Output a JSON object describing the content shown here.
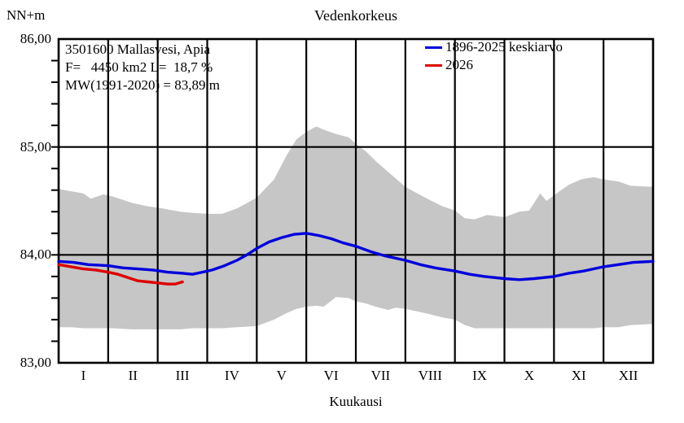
{
  "title": "Vedenkorkeus",
  "y_axis": {
    "unit_label": "NN+m",
    "min": 83,
    "max": 86,
    "major_ticks": [
      {
        "value": 86,
        "label": "86,00"
      },
      {
        "value": 85,
        "label": "85,00"
      },
      {
        "value": 84,
        "label": "84,00"
      },
      {
        "value": 83,
        "label": "83,00"
      }
    ],
    "minor_tick_step": 0.2,
    "gridline_values": [
      85,
      84
    ]
  },
  "x_axis": {
    "label": "Kuukausi",
    "months": [
      "I",
      "II",
      "III",
      "IV",
      "V",
      "VI",
      "VII",
      "VIII",
      "IX",
      "X",
      "XI",
      "XII"
    ]
  },
  "info_box": {
    "station": "3501600 Mallasvesi, Apia",
    "parameters": "F=   4450 km2 L=  18,7 %",
    "mean_water": "MW(1991-2020) = 83,89 m"
  },
  "legend": {
    "items": [
      {
        "label": "1896-2025 keskiarvo",
        "color": "#0000dd"
      },
      {
        "label": "2026",
        "color": "#dd0000"
      }
    ]
  },
  "colors": {
    "band": "#c6c6c6",
    "grid": "#000000",
    "mean_line": "#0000dd",
    "current_year_line": "#dd0000"
  },
  "chart_data": {
    "type": "line",
    "title": "Vedenkorkeus",
    "xlabel": "Kuukausi",
    "ylabel": "NN+m",
    "xlim": [
      1,
      13
    ],
    "ylim": [
      83,
      86
    ],
    "x_unit": "month position (1 = Jan 1, 13 = Dec 31)",
    "grid": "monthly vertical lines + horizontal lines at 84.00 and 85.00",
    "legend_position": "top-right-inside",
    "band": {
      "name": "min-max range 1896-2025",
      "color": "#c6c6c6",
      "points_x_lower_upper": [
        [
          1.0,
          83.33,
          84.61
        ],
        [
          1.25,
          83.33,
          84.59
        ],
        [
          1.5,
          83.32,
          84.57
        ],
        [
          1.65,
          83.32,
          84.52
        ],
        [
          1.9,
          83.32,
          84.56
        ],
        [
          2.1,
          83.32,
          84.54
        ],
        [
          2.5,
          83.31,
          84.48
        ],
        [
          2.8,
          83.31,
          84.45
        ],
        [
          3.1,
          83.31,
          84.43
        ],
        [
          3.45,
          83.31,
          84.4
        ],
        [
          3.7,
          83.32,
          84.39
        ],
        [
          4.0,
          83.32,
          84.38
        ],
        [
          4.3,
          83.32,
          84.38
        ],
        [
          4.6,
          83.33,
          84.43
        ],
        [
          5.0,
          83.34,
          84.53
        ],
        [
          5.35,
          83.4,
          84.7
        ],
        [
          5.6,
          83.46,
          84.92
        ],
        [
          5.8,
          83.5,
          85.07
        ],
        [
          6.0,
          83.52,
          85.14
        ],
        [
          6.2,
          83.53,
          85.19
        ],
        [
          6.35,
          83.52,
          85.16
        ],
        [
          6.6,
          83.61,
          85.12
        ],
        [
          6.85,
          83.6,
          85.09
        ],
        [
          7.0,
          83.57,
          85.03
        ],
        [
          7.2,
          83.55,
          84.96
        ],
        [
          7.4,
          83.52,
          84.87
        ],
        [
          7.65,
          83.49,
          84.77
        ],
        [
          7.8,
          83.51,
          84.71
        ],
        [
          8.0,
          83.5,
          84.63
        ],
        [
          8.4,
          83.46,
          84.53
        ],
        [
          8.75,
          83.42,
          84.45
        ],
        [
          9.0,
          83.4,
          84.41
        ],
        [
          9.2,
          83.35,
          84.34
        ],
        [
          9.4,
          83.32,
          84.33
        ],
        [
          9.65,
          83.32,
          84.37
        ],
        [
          10.0,
          83.32,
          84.35
        ],
        [
          10.3,
          83.32,
          84.4
        ],
        [
          10.5,
          83.32,
          84.41
        ],
        [
          10.72,
          83.32,
          84.57
        ],
        [
          10.85,
          83.32,
          84.5
        ],
        [
          11.05,
          83.32,
          84.57
        ],
        [
          11.3,
          83.32,
          84.65
        ],
        [
          11.55,
          83.32,
          84.7
        ],
        [
          11.8,
          83.32,
          84.72
        ],
        [
          12.0,
          83.33,
          84.7
        ],
        [
          12.3,
          83.33,
          84.68
        ],
        [
          12.55,
          83.35,
          84.64
        ],
        [
          13.0,
          83.36,
          84.63
        ]
      ]
    },
    "series": [
      {
        "name": "1896-2025 keskiarvo",
        "color": "#0000dd",
        "points": [
          [
            1.0,
            83.94
          ],
          [
            1.3,
            83.93
          ],
          [
            1.6,
            83.91
          ],
          [
            2.0,
            83.9
          ],
          [
            2.3,
            83.88
          ],
          [
            2.6,
            83.87
          ],
          [
            2.9,
            83.86
          ],
          [
            3.2,
            83.84
          ],
          [
            3.5,
            83.83
          ],
          [
            3.7,
            83.82
          ],
          [
            3.9,
            83.84
          ],
          [
            4.1,
            83.86
          ],
          [
            4.35,
            83.9
          ],
          [
            4.6,
            83.95
          ],
          [
            4.8,
            84.0
          ],
          [
            5.0,
            84.06
          ],
          [
            5.25,
            84.12
          ],
          [
            5.5,
            84.16
          ],
          [
            5.75,
            84.19
          ],
          [
            6.0,
            84.2
          ],
          [
            6.25,
            84.18
          ],
          [
            6.5,
            84.15
          ],
          [
            6.75,
            84.11
          ],
          [
            7.0,
            84.08
          ],
          [
            7.3,
            84.03
          ],
          [
            7.6,
            83.99
          ],
          [
            8.0,
            83.95
          ],
          [
            8.3,
            83.91
          ],
          [
            8.6,
            83.88
          ],
          [
            9.0,
            83.85
          ],
          [
            9.3,
            83.82
          ],
          [
            9.6,
            83.8
          ],
          [
            10.0,
            83.78
          ],
          [
            10.3,
            83.77
          ],
          [
            10.6,
            83.78
          ],
          [
            11.0,
            83.8
          ],
          [
            11.3,
            83.83
          ],
          [
            11.6,
            83.85
          ],
          [
            12.0,
            83.89
          ],
          [
            12.3,
            83.91
          ],
          [
            12.6,
            83.93
          ],
          [
            13.0,
            83.94
          ]
        ]
      },
      {
        "name": "2026",
        "color": "#dd0000",
        "points": [
          [
            1.0,
            83.91
          ],
          [
            1.25,
            83.89
          ],
          [
            1.5,
            83.87
          ],
          [
            1.75,
            83.86
          ],
          [
            2.0,
            83.84
          ],
          [
            2.2,
            83.82
          ],
          [
            2.4,
            83.79
          ],
          [
            2.6,
            83.76
          ],
          [
            2.8,
            83.75
          ],
          [
            3.0,
            83.74
          ],
          [
            3.2,
            83.73
          ],
          [
            3.35,
            83.73
          ],
          [
            3.5,
            83.75
          ]
        ]
      }
    ]
  }
}
